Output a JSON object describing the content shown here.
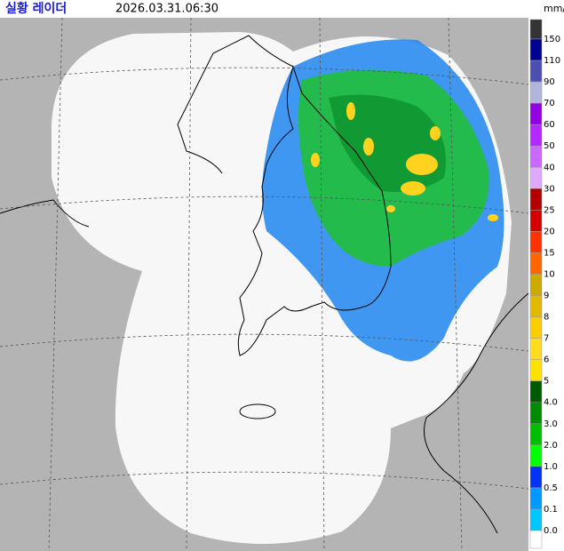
{
  "header": {
    "title": "실황 레이더",
    "time": "2026.03.31.06:30"
  },
  "legend": {
    "unit": "mm/h",
    "levels": [
      "150",
      "110",
      "90",
      "70",
      "60",
      "50",
      "40",
      "30",
      "25",
      "20",
      "15",
      "10",
      "9",
      "8",
      "7",
      "6",
      "5",
      "4.0",
      "3.0",
      "2.0",
      "1.0",
      "0.5",
      "0.1",
      "0.0"
    ],
    "colors": [
      "#333333",
      "#000390",
      "#4c4eb1",
      "#b3b4de",
      "#9300e4",
      "#b329ff",
      "#c969ff",
      "#e0a9ff",
      "#b40000",
      "#d20000",
      "#ff3200",
      "#ff6600",
      "#ccaa00",
      "#e0b900",
      "#f9cd00",
      "#ffdc1f",
      "#ffe100",
      "#005a00",
      "#008c00",
      "#00be00",
      "#00ff00",
      "#0033f5",
      "#0099ff",
      "#00c8ff",
      "#ffffff"
    ]
  }
}
